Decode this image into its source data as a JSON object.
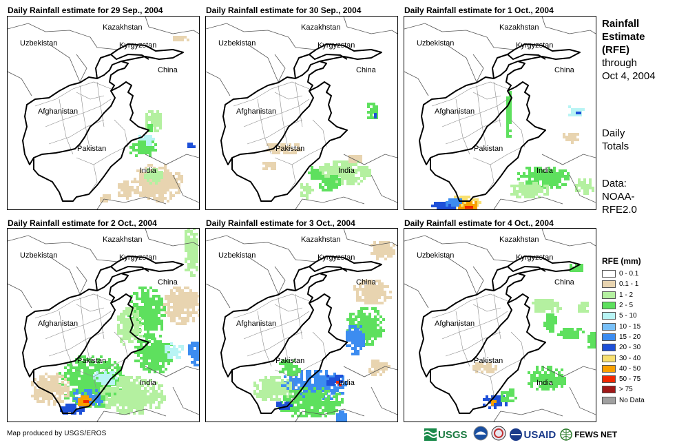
{
  "panels": [
    {
      "title": "Daily Rainfall estimate for 29 Sep., 2004"
    },
    {
      "title": "Daily Rainfall estimate for 30 Sep., 2004"
    },
    {
      "title": "Daily Rainfall estimate for 1 Oct., 2004"
    },
    {
      "title": "Daily Rainfall estimate for 2 Oct., 2004"
    },
    {
      "title": "Daily Rainfall estimate for 3 Oct., 2004"
    },
    {
      "title": "Daily Rainfall estimate for 4 Oct., 2004"
    }
  ],
  "country_labels": {
    "kazakhstan": "Kazakhstan",
    "kyrgyzstan": "Kyrgyzstan",
    "uzbekistan": "Uzbekistan",
    "china": "China",
    "afghanistan": "Afghanistan",
    "pakistan": "Pakistan",
    "india": "India"
  },
  "side": {
    "title_line1": "Rainfall",
    "title_line2": "Estimate",
    "title_line3": "(RFE)",
    "title_line4": "through",
    "title_line5": "Oct 4, 2004",
    "daily_line1": "Daily",
    "daily_line2": "Totals",
    "data_line1": "Data:",
    "data_line2": "NOAA-",
    "data_line3": "RFE2.0"
  },
  "legend": {
    "title": "RFE (mm)",
    "items": [
      {
        "label": "0 - 0.1",
        "color": "#ffffff"
      },
      {
        "label": "0.1 - 1",
        "color": "#e8d4b0"
      },
      {
        "label": "1 - 2",
        "color": "#b4f0a0"
      },
      {
        "label": "2 - 5",
        "color": "#5ee05e"
      },
      {
        "label": "5 - 10",
        "color": "#b8f4f4"
      },
      {
        "label": "10 - 15",
        "color": "#78c0f8"
      },
      {
        "label": "15 - 20",
        "color": "#3c8cf0"
      },
      {
        "label": "20 - 30",
        "color": "#1e50d8"
      },
      {
        "label": "30 - 40",
        "color": "#f8e070"
      },
      {
        "label": "40 - 50",
        "color": "#f8a000"
      },
      {
        "label": "50 - 75",
        "color": "#f02800"
      },
      {
        "label": "> 75",
        "color": "#a01818"
      },
      {
        "label": "No Data",
        "color": "#a0a0a0"
      }
    ]
  },
  "credit": "Map produced by USGS/EROS",
  "logos": {
    "usgs": "USGS",
    "usaid": "USAID",
    "fewsnet": "FEWS NET"
  }
}
